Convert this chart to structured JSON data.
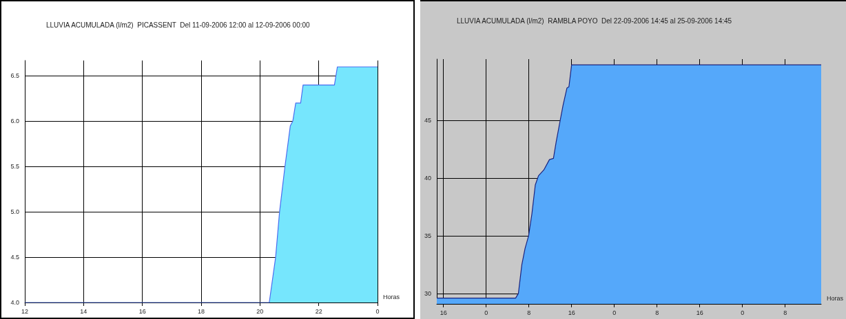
{
  "chart_data": [
    {
      "type": "area",
      "title": "LLUVIA ACUMULADA (l/m2)  PICASSENT  Del 11-09-2006 12:00 al 12-09-2006 00:00",
      "xlabel": "Horas",
      "series": [
        {
          "color": "#76e6fd",
          "x": [
            "2006-09-11T12:00",
            "2006-09-11T20:19",
            "2006-09-11T20:32",
            "2006-09-11T20:40",
            "2006-09-11T20:51",
            "2006-09-11T21:02",
            "2006-09-11T21:07",
            "2006-09-11T21:13",
            "2006-09-11T21:23",
            "2006-09-11T21:28",
            "2006-09-11T22:32",
            "2006-09-11T22:38",
            "2006-09-12T00:00"
          ],
          "values": [
            4.0,
            4.0,
            4.5,
            5.0,
            5.5,
            5.95,
            6.0,
            6.2,
            6.2,
            6.4,
            6.4,
            6.6,
            6.6
          ]
        }
      ],
      "xlim": [
        "2006-09-11T12:00",
        "2006-09-12T00:00"
      ],
      "xticks": [
        {
          "value": "2006-09-11T12:00",
          "label": "12"
        },
        {
          "value": "2006-09-11T14:00",
          "label": "14"
        },
        {
          "value": "2006-09-11T16:00",
          "label": "16"
        },
        {
          "value": "2006-09-11T18:00",
          "label": "18"
        },
        {
          "value": "2006-09-11T20:00",
          "label": "20"
        },
        {
          "value": "2006-09-11T22:00",
          "label": "22"
        },
        {
          "value": "2006-09-12T00:00",
          "label": "0"
        }
      ],
      "ylim": [
        4,
        6.67
      ],
      "yticks": [
        {
          "value": 4,
          "label": "4.0"
        },
        4.5,
        {
          "value": 5,
          "label": "5.0"
        },
        5.5,
        {
          "value": 6,
          "label": "6.0"
        },
        6.5
      ],
      "grid": true,
      "marker": "none",
      "line_style": "solid"
    },
    {
      "type": "area",
      "title": "LLUVIA ACUMULADA (l/m2)  RAMBLA POYO  Del 22-09-2006 14:45 al 25-09-2006 14:45",
      "xlabel": "Horas",
      "series": [
        {
          "color": "#55a8fa",
          "x": [
            "2006-09-22T14:45",
            "2006-09-23T05:31",
            "2006-09-23T06:02",
            "2006-09-23T06:41",
            "2006-09-23T07:17",
            "2006-09-23T07:57",
            "2006-09-23T08:34",
            "2006-09-23T09:12",
            "2006-09-23T09:48",
            "2006-09-23T10:48",
            "2006-09-23T11:51",
            "2006-09-23T12:36",
            "2006-09-23T13:06",
            "2006-09-23T13:52",
            "2006-09-23T14:24",
            "2006-09-23T15:08",
            "2006-09-23T15:30",
            "2006-09-23T16:00",
            "2006-09-25T14:45"
          ],
          "values": [
            29.6,
            29.6,
            30.0,
            32.5,
            33.9,
            35.0,
            36.9,
            39.4,
            40.2,
            40.7,
            41.6,
            41.7,
            43.1,
            45.0,
            46.3,
            47.8,
            47.9,
            49.8,
            49.8
          ]
        }
      ],
      "xlim": [
        "2006-09-22T14:45",
        "2006-09-25T14:45"
      ],
      "xticks": [
        {
          "value": "2006-09-22T16:00",
          "label": "16"
        },
        {
          "value": "2006-09-23T00:00",
          "label": "0"
        },
        {
          "value": "2006-09-23T08:00",
          "label": "8"
        },
        {
          "value": "2006-09-23T16:00",
          "label": "16"
        },
        {
          "value": "2006-09-24T00:00",
          "label": "0"
        },
        {
          "value": "2006-09-24T08:00",
          "label": "8"
        },
        {
          "value": "2006-09-24T16:00",
          "label": "16"
        },
        {
          "value": "2006-09-25T00:00",
          "label": "0"
        },
        {
          "value": "2006-09-25T08:00",
          "label": "8"
        }
      ],
      "ylim": [
        29.1,
        50.3
      ],
      "yticks": [
        30,
        35,
        40,
        45
      ],
      "grid": true,
      "marker": "none",
      "line_style": "solid"
    }
  ]
}
